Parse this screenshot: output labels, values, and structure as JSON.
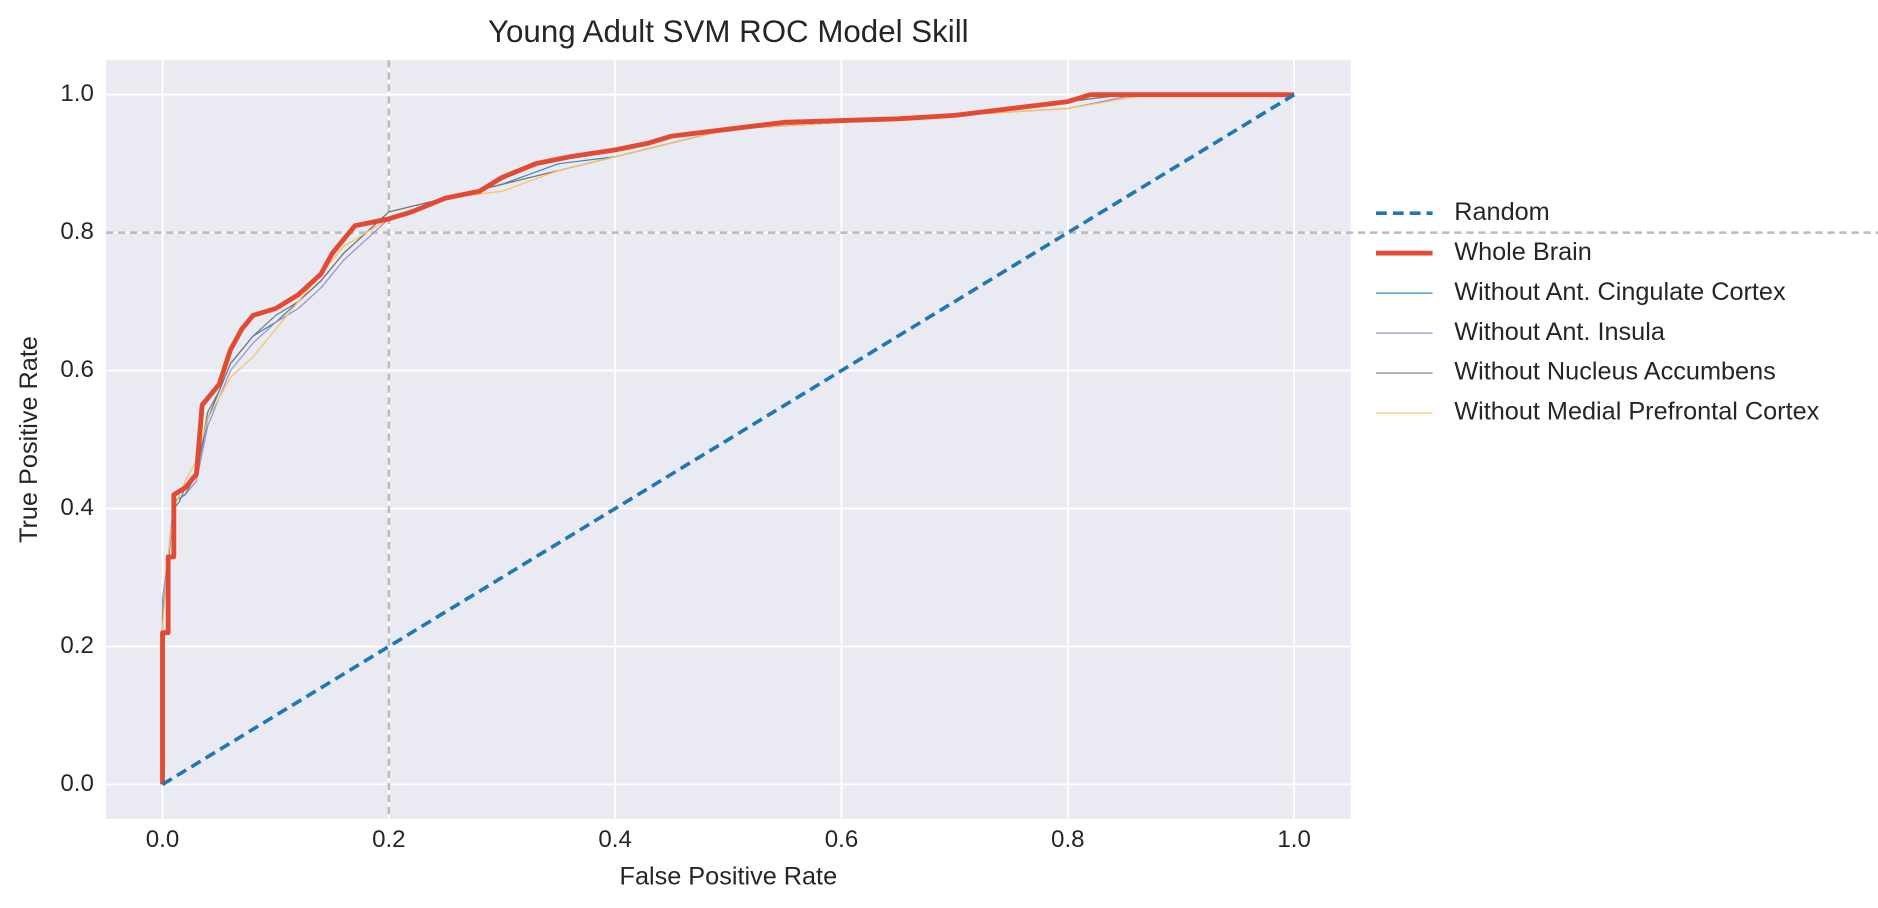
{
  "chart_data": {
    "type": "line",
    "title": "Young Adult SVM ROC Model Skill",
    "xlabel": "False Positive Rate",
    "ylabel": "True Positive Rate",
    "xlim": [
      -0.05,
      1.05
    ],
    "ylim": [
      -0.05,
      1.05
    ],
    "xticks": [
      {
        "value": 0,
        "label": "0.0"
      },
      0.2,
      0.4,
      0.6,
      0.8,
      {
        "value": 1,
        "label": "1.0"
      }
    ],
    "yticks": [
      {
        "value": 0,
        "label": "0.0"
      },
      0.2,
      0.4,
      0.6,
      0.8,
      {
        "value": 1,
        "label": "1.0"
      }
    ],
    "grid": true,
    "legend": "outside right",
    "reference_lines": {
      "x": 0.2,
      "y": 0.8,
      "color": "#bbbbbb"
    },
    "series": [
      {
        "name": "Random",
        "color": "#1f77b4",
        "linestyle": "dashed",
        "linewidth": 3,
        "x": [
          0,
          1
        ],
        "values": [
          0,
          1
        ]
      },
      {
        "name": "Whole Brain",
        "color": "#e24a33",
        "linestyle": "solid",
        "linewidth": 4,
        "x": [
          0,
          0,
          0.005,
          0.005,
          0.01,
          0.01,
          0.02,
          0.03,
          0.035,
          0.045,
          0.05,
          0.06,
          0.07,
          0.08,
          0.1,
          0.12,
          0.14,
          0.15,
          0.17,
          0.2,
          0.22,
          0.25,
          0.28,
          0.3,
          0.33,
          0.36,
          0.4,
          0.43,
          0.45,
          0.5,
          0.55,
          0.65,
          0.7,
          0.75,
          0.8,
          0.82,
          1
        ],
        "values": [
          0,
          0.22,
          0.22,
          0.33,
          0.33,
          0.42,
          0.43,
          0.45,
          0.55,
          0.57,
          0.58,
          0.63,
          0.66,
          0.68,
          0.69,
          0.71,
          0.74,
          0.77,
          0.81,
          0.82,
          0.83,
          0.85,
          0.86,
          0.88,
          0.9,
          0.91,
          0.92,
          0.93,
          0.94,
          0.95,
          0.96,
          0.965,
          0.97,
          0.98,
          0.99,
          1,
          1
        ]
      },
      {
        "name": "Without Ant. Cingulate Cortex",
        "color": "#348abd",
        "linestyle": "solid",
        "linewidth": 1,
        "x": [
          0,
          0,
          0.005,
          0.01,
          0.015,
          0.02,
          0.03,
          0.04,
          0.05,
          0.06,
          0.08,
          0.1,
          0.12,
          0.14,
          0.16,
          0.18,
          0.2,
          0.25,
          0.3,
          0.35,
          0.4,
          0.45,
          0.5,
          0.6,
          0.7,
          0.8,
          0.85,
          1
        ],
        "values": [
          0,
          0.25,
          0.32,
          0.4,
          0.41,
          0.43,
          0.45,
          0.53,
          0.57,
          0.61,
          0.65,
          0.67,
          0.7,
          0.73,
          0.77,
          0.8,
          0.83,
          0.85,
          0.87,
          0.9,
          0.91,
          0.93,
          0.95,
          0.96,
          0.97,
          0.99,
          1,
          1
        ]
      },
      {
        "name": "Without Ant. Insula",
        "color": "#988ed5",
        "linestyle": "solid",
        "linewidth": 1,
        "x": [
          0,
          0,
          0.005,
          0.01,
          0.02,
          0.03,
          0.04,
          0.05,
          0.06,
          0.08,
          0.1,
          0.12,
          0.14,
          0.16,
          0.18,
          0.2,
          0.25,
          0.3,
          0.35,
          0.4,
          0.45,
          0.5,
          0.6,
          0.7,
          0.8,
          0.86,
          1
        ],
        "values": [
          0,
          0.27,
          0.33,
          0.41,
          0.42,
          0.44,
          0.52,
          0.56,
          0.6,
          0.64,
          0.67,
          0.69,
          0.72,
          0.76,
          0.79,
          0.82,
          0.85,
          0.87,
          0.89,
          0.91,
          0.93,
          0.95,
          0.96,
          0.97,
          0.98,
          1,
          1
        ]
      },
      {
        "name": "Without Nucleus Accumbens",
        "color": "#777777",
        "linestyle": "solid",
        "linewidth": 1,
        "x": [
          0,
          0,
          0.005,
          0.01,
          0.02,
          0.03,
          0.04,
          0.05,
          0.06,
          0.08,
          0.1,
          0.12,
          0.14,
          0.16,
          0.18,
          0.2,
          0.25,
          0.3,
          0.35,
          0.4,
          0.45,
          0.5,
          0.6,
          0.7,
          0.8,
          0.85,
          1
        ],
        "values": [
          0,
          0.24,
          0.32,
          0.41,
          0.42,
          0.45,
          0.54,
          0.57,
          0.61,
          0.65,
          0.68,
          0.7,
          0.73,
          0.77,
          0.8,
          0.83,
          0.85,
          0.87,
          0.89,
          0.91,
          0.93,
          0.95,
          0.96,
          0.97,
          0.99,
          1,
          1
        ]
      },
      {
        "name": "Without Medial Prefrontal Cortex",
        "color": "#fbc15e",
        "linestyle": "solid",
        "linewidth": 1,
        "x": [
          0,
          0,
          0.005,
          0.01,
          0.02,
          0.03,
          0.04,
          0.05,
          0.06,
          0.08,
          0.1,
          0.12,
          0.14,
          0.16,
          0.18,
          0.2,
          0.25,
          0.3,
          0.35,
          0.4,
          0.45,
          0.5,
          0.6,
          0.7,
          0.8,
          0.87,
          1
        ],
        "values": [
          0,
          0.23,
          0.33,
          0.4,
          0.44,
          0.47,
          0.53,
          0.56,
          0.59,
          0.62,
          0.66,
          0.7,
          0.74,
          0.78,
          0.8,
          0.82,
          0.85,
          0.86,
          0.89,
          0.91,
          0.93,
          0.95,
          0.96,
          0.97,
          0.98,
          1,
          1
        ]
      }
    ]
  }
}
